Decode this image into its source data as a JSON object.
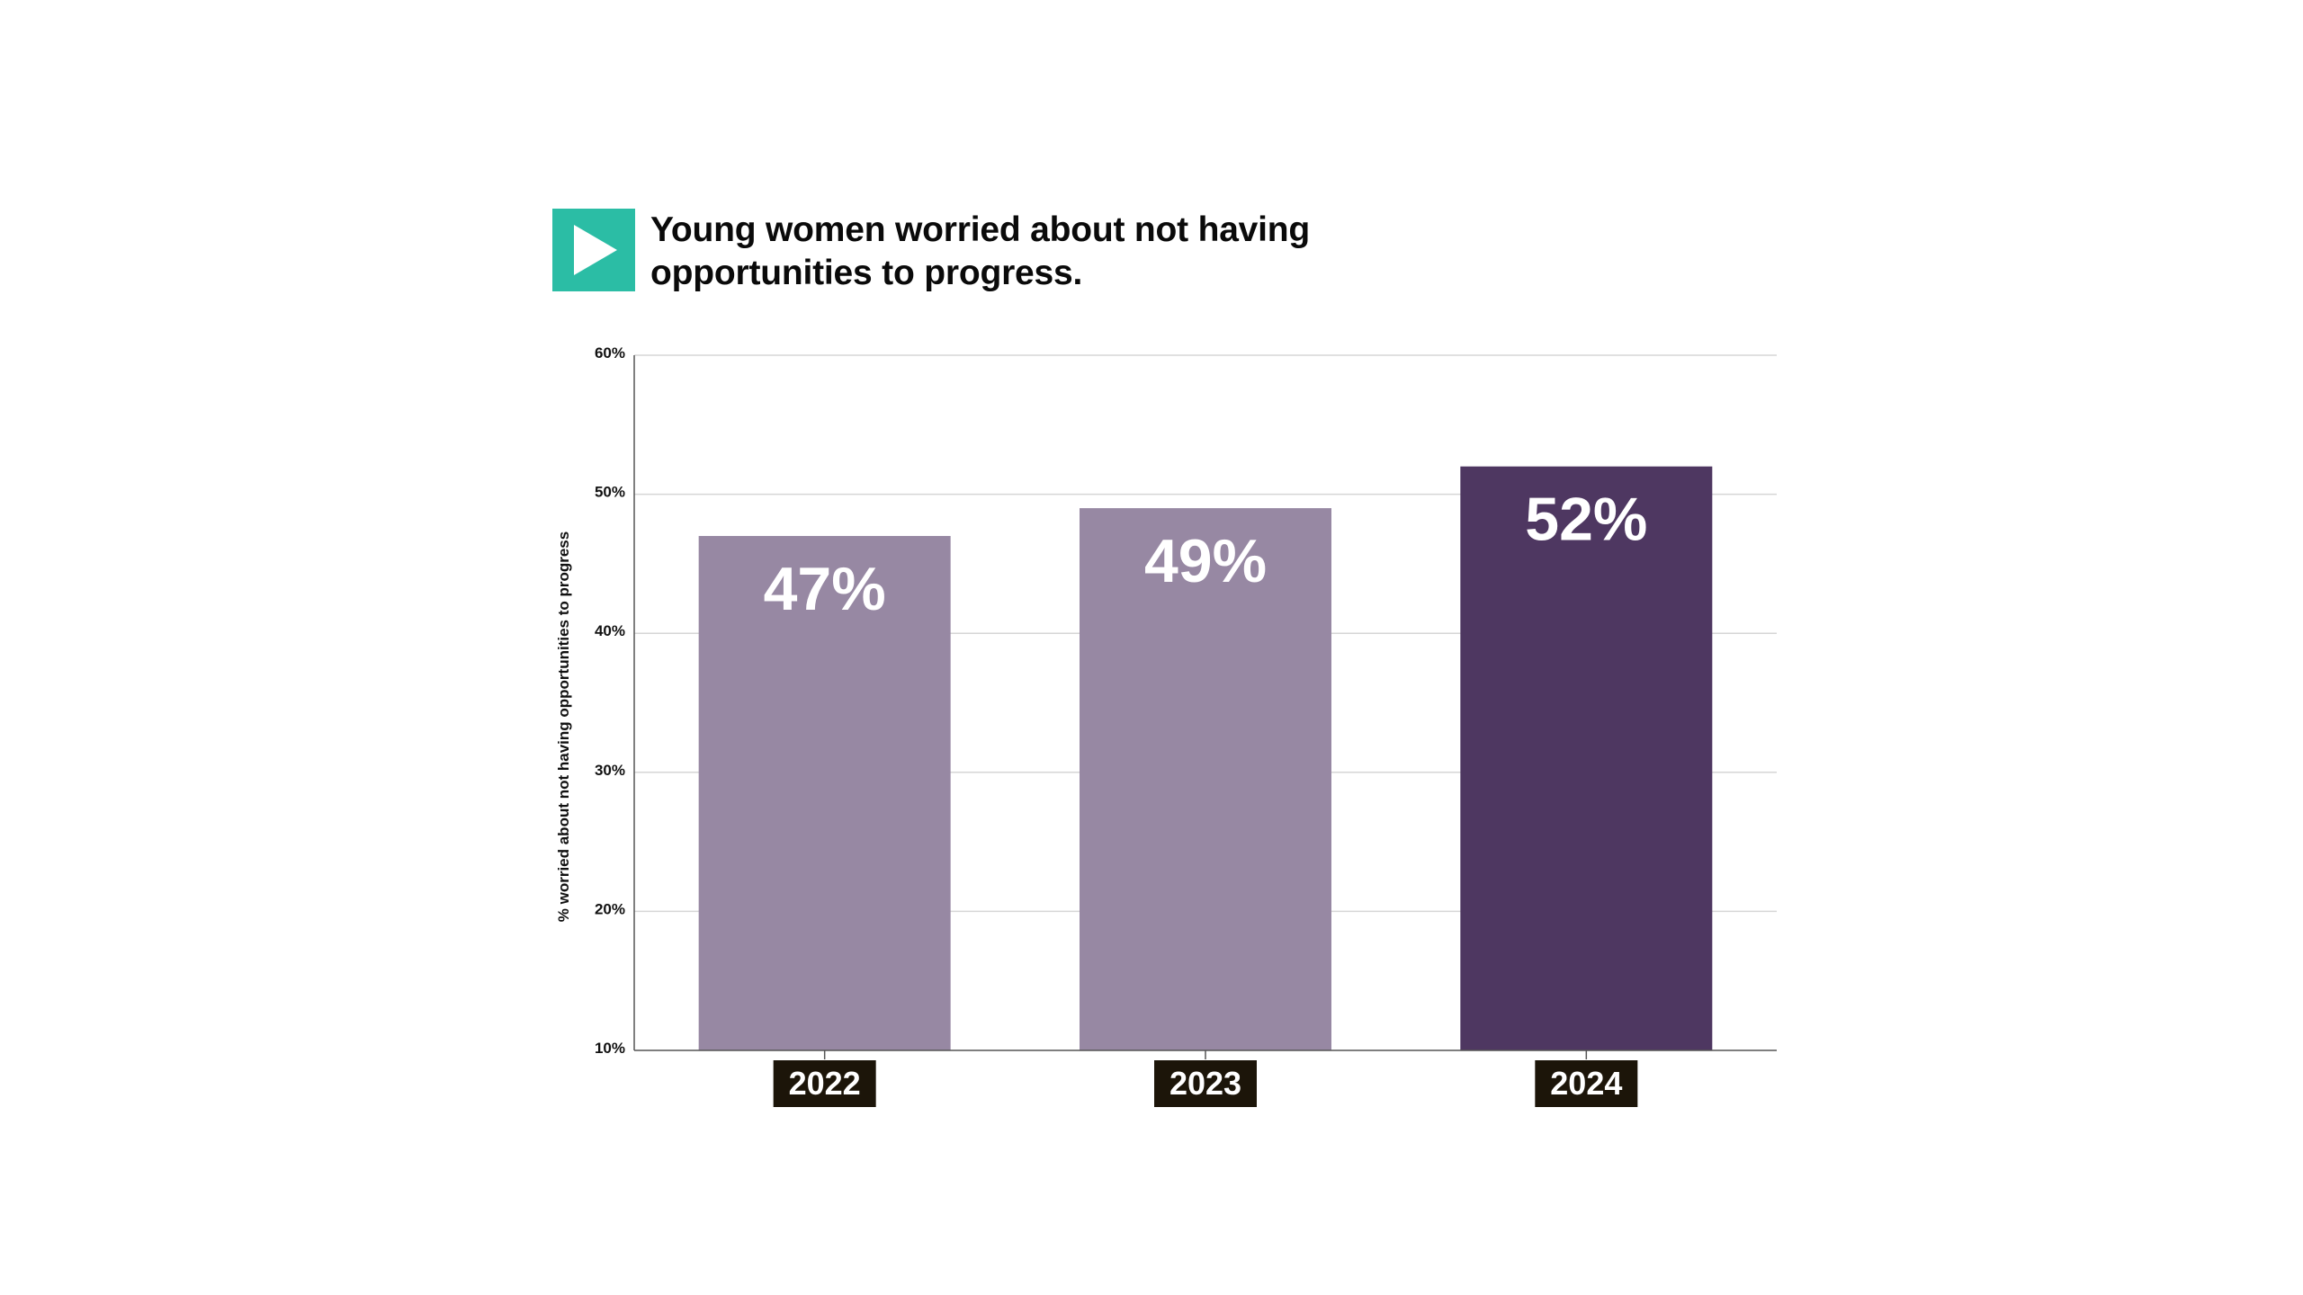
{
  "header": {
    "title": "Young women worried about not having opportunities to progress.",
    "badge_icon": "play-icon",
    "badge_color": "#2bbda5"
  },
  "chart_data": {
    "type": "bar",
    "title": "Young women worried about not having opportunities to progress.",
    "ylabel": "% worried about not having opportunities to progress",
    "xlabel": "",
    "categories": [
      "2022",
      "2023",
      "2024"
    ],
    "values": [
      47,
      49,
      52
    ],
    "data_labels": [
      "47%",
      "49%",
      "52%"
    ],
    "yticks": [
      "10%",
      "20%",
      "30%",
      "40%",
      "50%",
      "60%"
    ],
    "ytick_values": [
      10,
      20,
      30,
      40,
      50,
      60
    ],
    "ylim": [
      10,
      60
    ],
    "grid": true,
    "legend": "none",
    "bar_colors": [
      "#9788a3",
      "#9788a3",
      "#4e3761"
    ],
    "category_label_bg": "#1c1509",
    "category_label_color": "#ffffff",
    "data_label_color": "#ffffff"
  }
}
